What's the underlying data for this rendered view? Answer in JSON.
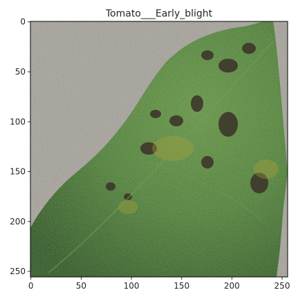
{
  "figure": {
    "title": "Tomato___Early_blight"
  },
  "chart_data": {
    "type": "image",
    "title": "Tomato___Early_blight",
    "xlim": [
      0,
      255
    ],
    "ylim": [
      255,
      0
    ],
    "x_ticks": [
      0,
      50,
      100,
      150,
      200,
      250
    ],
    "y_ticks": [
      0,
      50,
      100,
      150,
      200,
      250
    ],
    "x_tick_labels": [
      "0",
      "50",
      "100",
      "150",
      "200",
      "250"
    ],
    "y_tick_labels": [
      "0",
      "50",
      "100",
      "150",
      "200",
      "250"
    ],
    "grid": false,
    "image_content": "leaf-photo",
    "colors": {
      "background": "#9a9591",
      "leaf": "#4f7d39",
      "leaf_dark": "#2f4d22",
      "spot": "#3a3028"
    }
  }
}
